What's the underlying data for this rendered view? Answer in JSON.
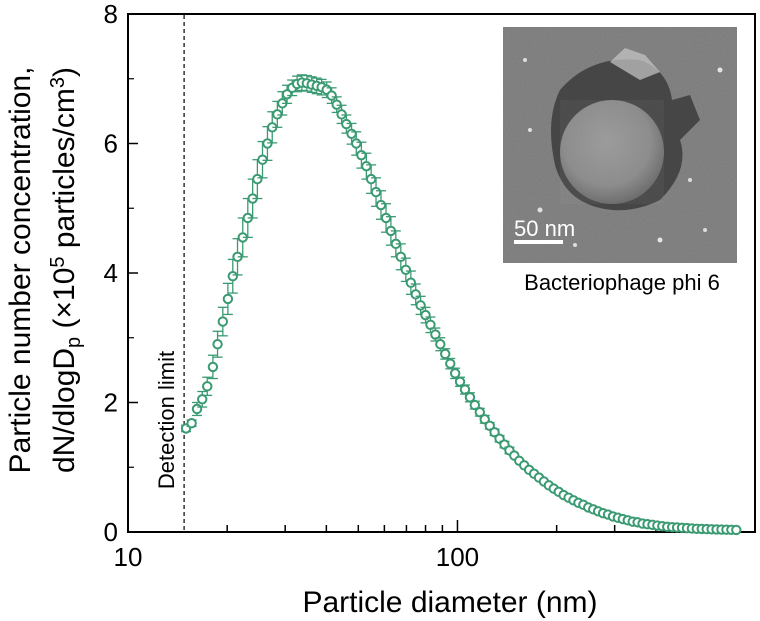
{
  "chart_data": {
    "type": "scatter",
    "xlabel": "Particle diameter (nm)",
    "ylabel_line1": "Particle number concentration,",
    "ylabel_line2": "dN/dlogD",
    "ylabel_sub": "p",
    "ylabel_unit_a": " (×10",
    "ylabel_unit_sup1": "5",
    "ylabel_unit_b": " particles/cm",
    "ylabel_unit_sup2": "3",
    "ylabel_unit_c": ")",
    "x_scale": "log",
    "xlim": [
      10,
      800
    ],
    "ylim": [
      0,
      8
    ],
    "x_ticks": [
      10,
      100
    ],
    "x_tick_labels": [
      "10",
      "100"
    ],
    "y_ticks": [
      0,
      2,
      4,
      6,
      8
    ],
    "y_tick_labels": [
      "0",
      "2",
      "4",
      "6",
      "8"
    ],
    "grid": false,
    "series_color": "#3a9a72",
    "marker": "open-circle",
    "detection_limit": {
      "x": 14.8,
      "label": "Detection limit"
    },
    "inset": {
      "label": "Bacteriophage phi 6",
      "scalebar": "50 nm"
    },
    "x": [
      15.0,
      15.6,
      16.2,
      16.8,
      17.4,
      18.1,
      18.7,
      19.4,
      20.1,
      20.8,
      21.5,
      22.3,
      23.1,
      23.9,
      24.7,
      25.6,
      26.5,
      27.4,
      28.4,
      29.4,
      30.4,
      31.5,
      32.6,
      33.7,
      34.9,
      36.1,
      37.4,
      38.7,
      40.1,
      41.5,
      43.0,
      44.5,
      46.0,
      47.7,
      49.3,
      51.1,
      52.9,
      54.7,
      56.6,
      58.6,
      60.7,
      62.8,
      65.0,
      67.3,
      69.7,
      72.2,
      74.7,
      77.3,
      80.0,
      82.8,
      85.7,
      88.7,
      91.8,
      95.1,
      98.4,
      101.8,
      105.4,
      109.1,
      112.9,
      116.9,
      121.0,
      125.3,
      129.6,
      134.2,
      138.9,
      143.8,
      148.8,
      154.0,
      159.4,
      165.0,
      170.8,
      176.8,
      183.0,
      189.4,
      196.0,
      202.9,
      210.0,
      217.4,
      225.0,
      232.9,
      241.1,
      249.5,
      258.3,
      267.3,
      276.7,
      286.4,
      296.5,
      306.9,
      317.6,
      328.8,
      340.3,
      352.2,
      364.6,
      377.4,
      390.6,
      404.3,
      418.5,
      433.2,
      448.4,
      464.1,
      480.4,
      497.2,
      514.7,
      532.7,
      551.4,
      570.8,
      590.8,
      611.5,
      633.0,
      655.2,
      678.2,
      702.0
    ],
    "y": [
      1.6,
      1.68,
      1.9,
      2.05,
      2.25,
      2.55,
      2.9,
      3.25,
      3.6,
      3.95,
      4.25,
      4.55,
      4.85,
      5.15,
      5.45,
      5.75,
      6.0,
      6.25,
      6.45,
      6.62,
      6.76,
      6.86,
      6.92,
      6.94,
      6.93,
      6.91,
      6.89,
      6.87,
      6.83,
      6.74,
      6.6,
      6.45,
      6.3,
      6.15,
      6.0,
      5.82,
      5.65,
      5.45,
      5.25,
      5.05,
      4.85,
      4.65,
      4.45,
      4.25,
      4.05,
      3.85,
      3.67,
      3.5,
      3.35,
      3.2,
      3.05,
      2.9,
      2.75,
      2.6,
      2.45,
      2.32,
      2.2,
      2.08,
      1.96,
      1.85,
      1.74,
      1.64,
      1.54,
      1.44,
      1.35,
      1.26,
      1.18,
      1.1,
      1.03,
      0.96,
      0.9,
      0.84,
      0.78,
      0.72,
      0.67,
      0.62,
      0.57,
      0.53,
      0.49,
      0.45,
      0.42,
      0.38,
      0.35,
      0.32,
      0.29,
      0.27,
      0.24,
      0.22,
      0.2,
      0.18,
      0.16,
      0.15,
      0.13,
      0.12,
      0.11,
      0.1,
      0.09,
      0.08,
      0.075,
      0.07,
      0.065,
      0.06,
      0.055,
      0.05,
      0.048,
      0.045,
      0.042,
      0.04,
      0.038,
      0.036,
      0.034,
      0.032
    ],
    "yerr": [
      0.05,
      0.05,
      0.1,
      0.12,
      0.14,
      0.18,
      0.2,
      0.22,
      0.24,
      0.26,
      0.28,
      0.3,
      0.3,
      0.3,
      0.3,
      0.28,
      0.26,
      0.24,
      0.2,
      0.18,
      0.14,
      0.12,
      0.12,
      0.12,
      0.12,
      0.12,
      0.12,
      0.12,
      0.12,
      0.12,
      0.12,
      0.14,
      0.14,
      0.16,
      0.18,
      0.2,
      0.2,
      0.22,
      0.22,
      0.22,
      0.22,
      0.22,
      0.2,
      0.2,
      0.18,
      0.18,
      0.16,
      0.14,
      0.12,
      0.12,
      0.1,
      0.1,
      0.08,
      0.08,
      0.08,
      0.07,
      0.07,
      0.07,
      0.06,
      0.06,
      0.06,
      0.05,
      0.05,
      0.05,
      0.05,
      0.05,
      0.04,
      0.04,
      0.04,
      0.04,
      0.04,
      0.04,
      0.03,
      0.03,
      0.03,
      0.03,
      0.03,
      0.03,
      0.03,
      0.03,
      0.02,
      0.02,
      0.02,
      0.02,
      0.02,
      0.02,
      0.02,
      0.02,
      0.02,
      0.02,
      0.02,
      0.02,
      0.02,
      0.02,
      0.02,
      0.02,
      0.02,
      0.02,
      0.02,
      0.02,
      0.02,
      0.02,
      0.02,
      0.02,
      0.02,
      0.02,
      0.02,
      0.02,
      0.02,
      0.02,
      0.02,
      0.02
    ]
  }
}
